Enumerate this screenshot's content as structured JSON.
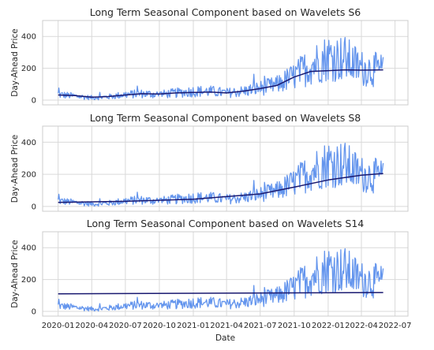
{
  "chart_data": [
    {
      "type": "line",
      "title": "Long Term Seasonal Component based on Wavelets S6",
      "ylabel": "Day-Ahead Price",
      "xlabel": "",
      "ylim": [
        -30,
        500
      ],
      "yticks": [
        0,
        200,
        400
      ],
      "grid": true,
      "series": [
        {
          "color": "#6495ED",
          "x": [
            "2020-01-01",
            "2020-02-15",
            "2020-04-01",
            "2020-05-15",
            "2020-07-01",
            "2020-08-15",
            "2020-10-01",
            "2020-11-15",
            "2021-01-01",
            "2021-02-15",
            "2021-04-01",
            "2021-05-15",
            "2021-07-01",
            "2021-08-15",
            "2021-10-01",
            "2021-11-15",
            "2022-01-01",
            "2022-02-15",
            "2022-04-01",
            "2022-05-30"
          ],
          "values": [
            35,
            25,
            15,
            20,
            35,
            40,
            35,
            45,
            55,
            55,
            45,
            55,
            75,
            95,
            150,
            220,
            270,
            260,
            200,
            185
          ]
        },
        {
          "color": "#191970",
          "x": [
            "2020-01-01",
            "2020-02-15",
            "2020-04-01",
            "2020-05-15",
            "2020-07-01",
            "2020-08-15",
            "2020-10-01",
            "2020-11-15",
            "2021-01-01",
            "2021-02-15",
            "2021-04-01",
            "2021-05-15",
            "2021-07-01",
            "2021-08-15",
            "2021-10-01",
            "2021-11-15",
            "2022-01-01",
            "2022-02-15",
            "2022-04-01",
            "2022-05-30"
          ],
          "values": [
            32,
            28,
            18,
            22,
            32,
            40,
            38,
            45,
            48,
            50,
            45,
            55,
            72,
            92,
            145,
            180,
            185,
            190,
            188,
            190
          ]
        }
      ]
    },
    {
      "type": "line",
      "title": "Long Term Seasonal Component based on Wavelets S8",
      "ylabel": "Day-Ahead Price",
      "xlabel": "",
      "ylim": [
        -30,
        500
      ],
      "yticks": [
        0,
        200,
        400
      ],
      "grid": true,
      "series": [
        {
          "color": "#6495ED",
          "x": [
            "2020-01-01",
            "2020-02-15",
            "2020-04-01",
            "2020-05-15",
            "2020-07-01",
            "2020-08-15",
            "2020-10-01",
            "2020-11-15",
            "2021-01-01",
            "2021-02-15",
            "2021-04-01",
            "2021-05-15",
            "2021-07-01",
            "2021-08-15",
            "2021-10-01",
            "2021-11-15",
            "2022-01-01",
            "2022-02-15",
            "2022-04-01",
            "2022-05-30"
          ],
          "values": [
            35,
            25,
            15,
            20,
            35,
            40,
            35,
            45,
            55,
            55,
            45,
            55,
            75,
            95,
            150,
            220,
            270,
            260,
            200,
            185
          ]
        },
        {
          "color": "#191970",
          "x": [
            "2020-01-01",
            "2020-07-01",
            "2021-01-01",
            "2021-07-01",
            "2021-10-01",
            "2022-01-01",
            "2022-04-01",
            "2022-05-30"
          ],
          "values": [
            25,
            32,
            45,
            78,
            120,
            165,
            195,
            205
          ]
        }
      ]
    },
    {
      "type": "line",
      "title": "Long Term Seasonal Component based on Wavelets S14",
      "ylabel": "Day-Ahead Price",
      "xlabel": "Date",
      "ylim": [
        -30,
        500
      ],
      "yticks": [
        0,
        200,
        400
      ],
      "xticks": [
        "2020-01",
        "2020-04",
        "2020-07",
        "2020-10",
        "2021-01",
        "2021-04",
        "2021-07",
        "2021-10",
        "2022-01",
        "2022-04",
        "2022-07"
      ],
      "grid": true,
      "series": [
        {
          "color": "#6495ED",
          "x": [
            "2020-01-01",
            "2020-02-15",
            "2020-04-01",
            "2020-05-15",
            "2020-07-01",
            "2020-08-15",
            "2020-10-01",
            "2020-11-15",
            "2021-01-01",
            "2021-02-15",
            "2021-04-01",
            "2021-05-15",
            "2021-07-01",
            "2021-08-15",
            "2021-10-01",
            "2021-11-15",
            "2022-01-01",
            "2022-02-15",
            "2022-04-01",
            "2022-05-30"
          ],
          "values": [
            35,
            25,
            15,
            20,
            35,
            40,
            35,
            45,
            55,
            55,
            45,
            55,
            75,
            95,
            150,
            220,
            270,
            260,
            200,
            185
          ]
        },
        {
          "color": "#191970",
          "x": [
            "2020-01-01",
            "2022-05-30"
          ],
          "values": [
            110,
            118
          ]
        }
      ]
    }
  ]
}
